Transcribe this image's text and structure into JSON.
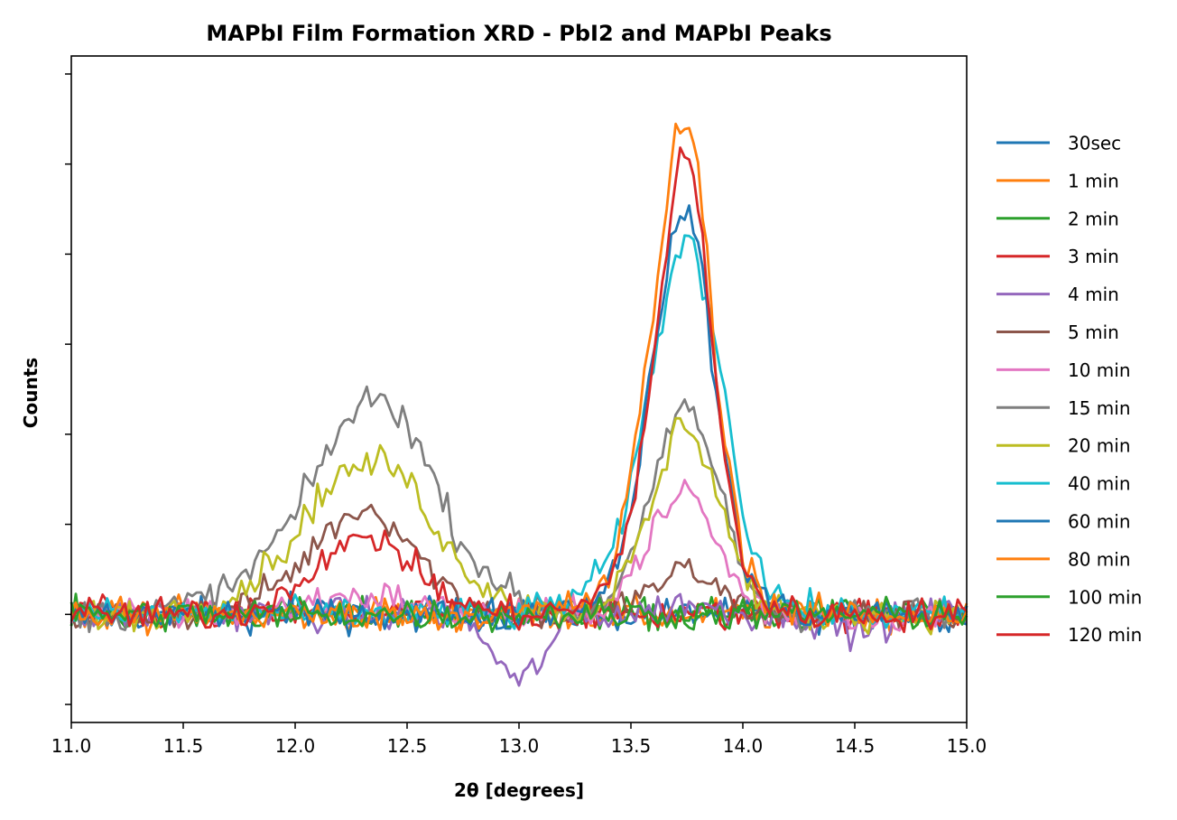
{
  "chart_data": {
    "type": "line",
    "title": "MAPbI Film Formation XRD - PbI2 and MAPbI Peaks",
    "xlabel": "2θ [degrees]",
    "ylabel": "Counts",
    "xlim": [
      11.0,
      15.0
    ],
    "ylim": [
      -1.2,
      6.2
    ],
    "x_ticks": [
      "11.0",
      "11.5",
      "12.0",
      "12.5",
      "13.0",
      "13.5",
      "14.0",
      "14.5",
      "15.0"
    ],
    "y_ticks_shown": false,
    "grid": false,
    "legend_position": "outside-right",
    "x": [
      11.0,
      11.25,
      11.5,
      11.75,
      12.0,
      12.1,
      12.2,
      12.3,
      12.4,
      12.5,
      12.6,
      12.75,
      13.0,
      13.25,
      13.4,
      13.5,
      13.6,
      13.7,
      13.75,
      13.8,
      13.9,
      14.0,
      14.1,
      14.25,
      14.5,
      14.75,
      15.0
    ],
    "series": [
      {
        "name": "30sec",
        "color": "#1f77b4",
        "values": [
          0.0,
          0.0,
          0.0,
          0.0,
          0.0,
          0.0,
          0.0,
          0.0,
          0.0,
          0.0,
          0.0,
          0.0,
          0.0,
          0.0,
          0.0,
          0.0,
          0.0,
          0.0,
          0.0,
          0.0,
          0.0,
          0.0,
          0.0,
          0.0,
          0.0,
          0.0,
          0.0
        ]
      },
      {
        "name": "1 min",
        "color": "#ff7f0e",
        "values": [
          0.0,
          0.0,
          0.0,
          0.0,
          0.0,
          0.0,
          0.0,
          0.0,
          0.0,
          0.0,
          0.0,
          0.0,
          0.0,
          0.0,
          0.0,
          0.0,
          0.0,
          0.0,
          0.0,
          0.0,
          0.0,
          0.0,
          0.0,
          0.0,
          0.0,
          0.0,
          0.0
        ]
      },
      {
        "name": "2 min",
        "color": "#2ca02c",
        "values": [
          0.0,
          0.0,
          0.0,
          0.0,
          0.0,
          0.0,
          0.0,
          0.0,
          0.0,
          0.0,
          0.0,
          0.0,
          0.0,
          0.0,
          0.0,
          0.0,
          0.0,
          0.0,
          0.0,
          0.0,
          0.0,
          0.0,
          0.0,
          0.0,
          0.0,
          0.0,
          0.0
        ]
      },
      {
        "name": "3 min",
        "color": "#d62728",
        "values": [
          0.0,
          0.0,
          0.0,
          0.0,
          0.0,
          0.0,
          0.0,
          0.0,
          0.0,
          0.0,
          0.0,
          0.0,
          0.0,
          0.0,
          0.0,
          0.0,
          0.0,
          0.0,
          0.0,
          0.0,
          0.0,
          0.0,
          0.0,
          0.0,
          0.0,
          0.0,
          0.0
        ]
      },
      {
        "name": "4 min",
        "color": "#9467bd",
        "values": [
          0.0,
          0.0,
          0.0,
          0.0,
          0.0,
          0.0,
          0.0,
          0.0,
          0.0,
          0.0,
          0.0,
          0.0,
          -0.8,
          0.0,
          0.0,
          0.0,
          0.05,
          0.1,
          0.15,
          0.1,
          0.05,
          0.0,
          0.0,
          0.0,
          -0.2,
          0.0,
          0.0
        ]
      },
      {
        "name": "5 min",
        "color": "#8c564b",
        "values": [
          0.0,
          0.0,
          0.0,
          0.05,
          0.5,
          0.8,
          1.05,
          1.2,
          1.1,
          0.85,
          0.5,
          0.15,
          0.0,
          0.0,
          0.05,
          0.15,
          0.3,
          0.45,
          0.5,
          0.45,
          0.25,
          0.1,
          0.0,
          0.0,
          0.0,
          0.0,
          0.0
        ]
      },
      {
        "name": "10 min",
        "color": "#e377c2",
        "values": [
          0.0,
          0.0,
          0.0,
          0.0,
          0.1,
          0.15,
          0.2,
          0.2,
          0.2,
          0.15,
          0.1,
          0.0,
          0.0,
          0.0,
          0.15,
          0.45,
          0.95,
          1.25,
          1.45,
          1.25,
          0.7,
          0.25,
          0.05,
          0.0,
          0.0,
          0.0,
          0.0
        ]
      },
      {
        "name": "15 min",
        "color": "#7f7f7f",
        "values": [
          0.0,
          0.0,
          0.1,
          0.35,
          1.1,
          1.6,
          2.05,
          2.35,
          2.4,
          2.15,
          1.6,
          0.75,
          0.15,
          0.0,
          0.2,
          0.6,
          1.4,
          2.2,
          2.35,
          2.15,
          1.35,
          0.5,
          0.1,
          0.0,
          0.0,
          0.0,
          0.0
        ]
      },
      {
        "name": "20 min",
        "color": "#bcbd22",
        "values": [
          0.0,
          0.0,
          0.05,
          0.25,
          0.85,
          1.3,
          1.55,
          1.65,
          1.7,
          1.5,
          1.1,
          0.5,
          0.1,
          0.0,
          0.2,
          0.55,
          1.25,
          2.05,
          2.15,
          1.95,
          1.25,
          0.45,
          0.1,
          0.0,
          0.0,
          0.0,
          0.0
        ]
      },
      {
        "name": "40 min",
        "color": "#17becf",
        "values": [
          0.0,
          0.0,
          0.0,
          0.0,
          0.0,
          0.0,
          0.0,
          0.0,
          0.0,
          0.0,
          0.0,
          0.0,
          0.0,
          0.2,
          0.55,
          1.4,
          2.8,
          4.0,
          4.15,
          3.95,
          2.8,
          1.15,
          0.35,
          0.05,
          0.0,
          0.0,
          0.0
        ]
      },
      {
        "name": "60 min",
        "color": "#1f77b4",
        "values": [
          0.0,
          0.0,
          0.0,
          0.0,
          0.0,
          0.0,
          0.0,
          0.0,
          0.0,
          0.0,
          0.0,
          0.0,
          0.0,
          0.1,
          0.3,
          1.2,
          2.8,
          4.4,
          4.5,
          4.1,
          2.1,
          0.6,
          0.15,
          0.0,
          0.0,
          0.0,
          0.0
        ]
      },
      {
        "name": "80 min",
        "color": "#ff7f0e",
        "values": [
          0.0,
          0.0,
          0.0,
          0.0,
          0.0,
          0.0,
          0.0,
          0.0,
          0.0,
          0.0,
          0.0,
          0.0,
          0.0,
          0.1,
          0.35,
          1.5,
          3.4,
          5.3,
          5.5,
          5.0,
          2.3,
          0.7,
          0.15,
          0.0,
          0.0,
          0.0,
          0.0
        ]
      },
      {
        "name": "100 min",
        "color": "#2ca02c",
        "values": [
          0.0,
          0.0,
          0.0,
          0.0,
          0.0,
          0.0,
          0.0,
          0.0,
          0.0,
          0.0,
          0.0,
          0.0,
          0.0,
          0.0,
          0.0,
          0.0,
          0.0,
          0.0,
          0.0,
          0.0,
          0.0,
          0.0,
          0.0,
          0.0,
          0.0,
          0.0,
          0.0
        ]
      },
      {
        "name": "120 min",
        "color": "#d62728",
        "values": [
          0.0,
          0.0,
          0.0,
          0.0,
          0.3,
          0.6,
          0.75,
          0.8,
          0.85,
          0.6,
          0.35,
          0.1,
          0.0,
          0.05,
          0.3,
          1.1,
          2.8,
          4.9,
          5.15,
          4.6,
          2.05,
          0.6,
          0.1,
          0.0,
          0.0,
          0.0,
          0.0
        ]
      }
    ]
  }
}
